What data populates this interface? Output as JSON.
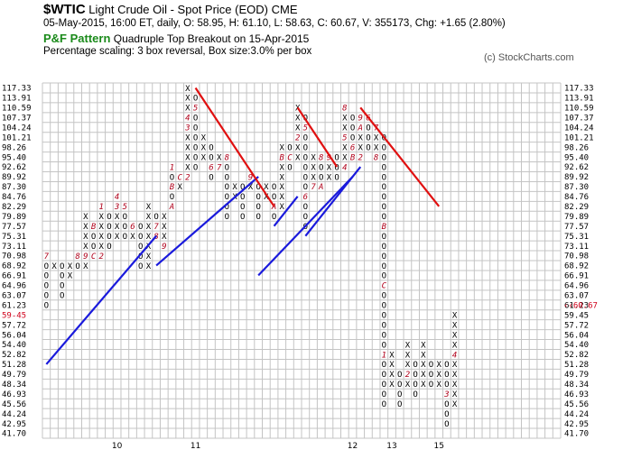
{
  "header": {
    "symbol": "$WTIC",
    "name": "Light Crude Oil - Spot Price (EOD)",
    "exchange": "CME",
    "info": "05-May-2015, 16:00 ET, daily, O: 58.95, H: 61.10, L: 58.63, C: 60.67, V: 355173, Chg: +1.65 (2.80%)",
    "pattern_label": "P&F Pattern",
    "pattern_text": "Quadruple Top Breakout on 15-Apr-2015",
    "scaling": "Percentage scaling: 3 box reversal, Box size:3.0% per box",
    "copyright": "(c) StockCharts.com"
  },
  "colors": {
    "bullish_line": "#1a1adc",
    "bearish_line": "#e01010",
    "month_mark": "#b0001a",
    "current_price": "#d0021b",
    "pattern_label": "#1a8a1a"
  },
  "chart_data": {
    "type": "point-and-figure",
    "y_labels": [
      "117.33",
      "113.91",
      "110.59",
      "107.37",
      "104.24",
      "101.21",
      "98.26",
      "95.40",
      "92.62",
      "89.92",
      "87.30",
      "84.76",
      "82.29",
      "79.89",
      "77.57",
      "75.31",
      "73.11",
      "70.98",
      "68.92",
      "66.91",
      "64.96",
      "63.07",
      "61.23",
      "59.45",
      "57.72",
      "56.04",
      "54.40",
      "52.82",
      "51.28",
      "49.79",
      "48.34",
      "46.93",
      "45.56",
      "44.24",
      "42.95",
      "41.70"
    ],
    "left_marker": "59.45",
    "right_marker": "60.67",
    "x_labels": [
      {
        "label": "10",
        "col": 9
      },
      {
        "label": "11",
        "col": 19
      },
      {
        "label": "12",
        "col": 39
      },
      {
        "label": "13",
        "col": 44
      },
      {
        "label": "15",
        "col": 50
      }
    ],
    "columns": [
      {
        "type": "O",
        "top": 70.98,
        "bottom": 61.23,
        "marks": [
          {
            "price": 70.98,
            "mark": "7"
          }
        ]
      },
      {
        "type": "X",
        "top": 68.92,
        "bottom": 68.92
      },
      {
        "type": "O",
        "top": 68.92,
        "bottom": 63.07
      },
      {
        "type": "X",
        "top": 68.92,
        "bottom": 66.91
      },
      {
        "type": "O",
        "top": 70.98,
        "bottom": 68.92,
        "marks": [
          {
            "price": 70.98,
            "mark": "8"
          }
        ]
      },
      {
        "type": "X",
        "top": 79.89,
        "bottom": 68.92,
        "marks": [
          {
            "price": 70.98,
            "mark": "9"
          }
        ]
      },
      {
        "type": "O",
        "top": 77.57,
        "bottom": 70.98,
        "marks": [
          {
            "price": 77.57,
            "mark": "B"
          },
          {
            "price": 70.98,
            "mark": "C"
          }
        ]
      },
      {
        "type": "X",
        "top": 82.29,
        "bottom": 70.98,
        "marks": [
          {
            "price": 82.29,
            "mark": "1"
          },
          {
            "price": 70.98,
            "mark": "2"
          }
        ]
      },
      {
        "type": "O",
        "top": 79.89,
        "bottom": 73.11
      },
      {
        "type": "X",
        "top": 84.76,
        "bottom": 75.31,
        "marks": [
          {
            "price": 84.76,
            "mark": "4"
          },
          {
            "price": 82.29,
            "mark": "3"
          }
        ]
      },
      {
        "type": "O",
        "top": 82.29,
        "bottom": 75.31,
        "marks": [
          {
            "price": 82.29,
            "mark": "5"
          }
        ]
      },
      {
        "type": "X",
        "top": 77.57,
        "bottom": 75.31,
        "marks": [
          {
            "price": 77.57,
            "mark": "6"
          }
        ]
      },
      {
        "type": "O",
        "top": 77.57,
        "bottom": 68.92
      },
      {
        "type": "X",
        "top": 82.29,
        "bottom": 68.92
      },
      {
        "type": "O",
        "top": 79.89,
        "bottom": 75.31,
        "marks": [
          {
            "price": 77.57,
            "mark": "7"
          },
          {
            "price": 75.31,
            "mark": "8"
          }
        ]
      },
      {
        "type": "X",
        "top": 79.89,
        "bottom": 73.11,
        "marks": [
          {
            "price": 73.11,
            "mark": "9"
          }
        ]
      },
      {
        "type": "O",
        "top": 92.62,
        "bottom": 82.29,
        "marks": [
          {
            "price": 92.62,
            "mark": "1"
          },
          {
            "price": 87.3,
            "mark": "B"
          },
          {
            "price": 82.29,
            "mark": "A"
          }
        ]
      },
      {
        "type": "X",
        "top": 89.92,
        "bottom": 87.3,
        "marks": [
          {
            "price": 89.92,
            "mark": "C"
          }
        ]
      },
      {
        "type": "X",
        "top": 117.33,
        "bottom": 89.92,
        "marks": [
          {
            "price": 107.37,
            "mark": "4"
          },
          {
            "price": 104.24,
            "mark": "3"
          },
          {
            "price": 89.92,
            "mark": "2"
          }
        ]
      },
      {
        "type": "O",
        "top": 113.91,
        "bottom": 92.62,
        "marks": [
          {
            "price": 110.59,
            "mark": "5"
          }
        ]
      },
      {
        "type": "X",
        "top": 101.21,
        "bottom": 95.4
      },
      {
        "type": "O",
        "top": 98.26,
        "bottom": 89.92,
        "marks": [
          {
            "price": 92.62,
            "mark": "6"
          }
        ]
      },
      {
        "type": "X",
        "top": 95.4,
        "bottom": 92.62,
        "marks": [
          {
            "price": 92.62,
            "mark": "7"
          }
        ]
      },
      {
        "type": "O",
        "top": 95.4,
        "bottom": 79.89,
        "marks": [
          {
            "price": 95.4,
            "mark": "8"
          }
        ]
      },
      {
        "type": "X",
        "top": 87.3,
        "bottom": 84.76
      },
      {
        "type": "O",
        "top": 87.3,
        "bottom": 79.89
      },
      {
        "type": "X",
        "top": 89.92,
        "bottom": 87.3,
        "marks": [
          {
            "price": 89.92,
            "mark": "9"
          }
        ]
      },
      {
        "type": "O",
        "top": 87.3,
        "bottom": 79.89
      },
      {
        "type": "X",
        "top": 87.3,
        "bottom": 84.76
      },
      {
        "type": "O",
        "top": 87.3,
        "bottom": 79.89,
        "marks": [
          {
            "price": 82.29,
            "mark": "A"
          }
        ]
      },
      {
        "type": "X",
        "top": 98.26,
        "bottom": 82.29,
        "marks": [
          {
            "price": 95.4,
            "mark": "B"
          }
        ]
      },
      {
        "type": "O",
        "top": 98.26,
        "bottom": 92.62,
        "marks": [
          {
            "price": 95.4,
            "mark": "C"
          }
        ]
      },
      {
        "type": "X",
        "top": 110.59,
        "bottom": 95.4,
        "marks": [
          {
            "price": 101.21,
            "mark": "2"
          }
        ]
      },
      {
        "type": "O",
        "top": 107.37,
        "bottom": 77.57,
        "marks": [
          {
            "price": 104.24,
            "mark": "5"
          },
          {
            "price": 84.76,
            "mark": "6"
          }
        ]
      },
      {
        "type": "X",
        "top": 95.4,
        "bottom": 87.3,
        "marks": [
          {
            "price": 87.3,
            "mark": "7"
          }
        ]
      },
      {
        "type": "O",
        "top": 95.4,
        "bottom": 87.3,
        "marks": [
          {
            "price": 95.4,
            "mark": "8"
          },
          {
            "price": 87.3,
            "mark": "A"
          }
        ]
      },
      {
        "type": "X",
        "top": 95.4,
        "bottom": 89.92,
        "marks": [
          {
            "price": 95.4,
            "mark": "9"
          }
        ]
      },
      {
        "type": "O",
        "top": 95.4,
        "bottom": 89.92
      },
      {
        "type": "X",
        "top": 110.59,
        "bottom": 92.62,
        "marks": [
          {
            "price": 110.59,
            "mark": "8"
          },
          {
            "price": 101.21,
            "mark": "5"
          },
          {
            "price": 92.62,
            "mark": "4"
          }
        ]
      },
      {
        "type": "O",
        "top": 107.37,
        "bottom": 95.4,
        "marks": [
          {
            "price": 98.26,
            "mark": "6"
          },
          {
            "price": 95.4,
            "mark": "B"
          }
        ]
      },
      {
        "type": "X",
        "top": 107.37,
        "bottom": 95.4,
        "marks": [
          {
            "price": 107.37,
            "mark": "9"
          },
          {
            "price": 104.24,
            "mark": "A"
          },
          {
            "price": 95.4,
            "mark": "2"
          }
        ]
      },
      {
        "type": "O",
        "top": 107.37,
        "bottom": 98.26,
        "marks": [
          {
            "price": 107.37,
            "mark": "6"
          }
        ]
      },
      {
        "type": "X",
        "top": 104.24,
        "bottom": 95.4,
        "marks": [
          {
            "price": 104.24,
            "mark": "7"
          },
          {
            "price": 95.4,
            "mark": "8"
          }
        ]
      },
      {
        "type": "O",
        "top": 101.21,
        "bottom": 45.56,
        "marks": [
          {
            "price": 77.57,
            "mark": "B"
          },
          {
            "price": 64.96,
            "mark": "C"
          },
          {
            "price": 52.82,
            "mark": "1"
          }
        ]
      },
      {
        "type": "X",
        "top": 52.82,
        "bottom": 48.34
      },
      {
        "type": "O",
        "top": 49.79,
        "bottom": 45.56
      },
      {
        "type": "X",
        "top": 54.4,
        "bottom": 48.34,
        "marks": [
          {
            "price": 49.79,
            "mark": "2"
          }
        ]
      },
      {
        "type": "O",
        "top": 51.28,
        "bottom": 47.02
      },
      {
        "type": "X",
        "top": 54.4,
        "bottom": 48.34
      },
      {
        "type": "O",
        "top": 51.28,
        "bottom": 48.34
      },
      {
        "type": "X",
        "top": 51.28,
        "bottom": 48.34
      },
      {
        "type": "O",
        "top": 51.28,
        "bottom": 42.95,
        "marks": [
          {
            "price": 46.93,
            "mark": "3"
          }
        ]
      },
      {
        "type": "X",
        "top": 59.45,
        "bottom": 45.56,
        "marks": [
          {
            "price": 52.82,
            "mark": "4"
          }
        ]
      }
    ],
    "trendlines": [
      {
        "type": "bullish",
        "from": {
          "col": 0,
          "price": 51.28
        },
        "to": {
          "col": 14,
          "price": 75.31
        }
      },
      {
        "type": "bullish",
        "from": {
          "col": 14,
          "price": 68.92
        },
        "to": {
          "col": 27,
          "price": 89.92
        }
      },
      {
        "type": "bullish",
        "from": {
          "col": 27,
          "price": 66.91
        },
        "to": {
          "col": 39,
          "price": 89.92
        }
      },
      {
        "type": "bearish",
        "from": {
          "col": 19,
          "price": 117.33
        },
        "to": {
          "col": 29,
          "price": 82.29
        }
      },
      {
        "type": "bullish",
        "from": {
          "col": 29,
          "price": 77.57
        },
        "to": {
          "col": 32,
          "price": 84.76
        }
      },
      {
        "type": "bearish",
        "from": {
          "col": 32,
          "price": 110.59
        },
        "to": {
          "col": 37,
          "price": 92.62
        }
      },
      {
        "type": "bullish",
        "from": {
          "col": 33,
          "price": 75.31
        },
        "to": {
          "col": 40,
          "price": 92.62
        }
      },
      {
        "type": "bearish",
        "from": {
          "col": 40,
          "price": 110.59
        },
        "to": {
          "col": 50,
          "price": 82.29
        }
      }
    ]
  }
}
